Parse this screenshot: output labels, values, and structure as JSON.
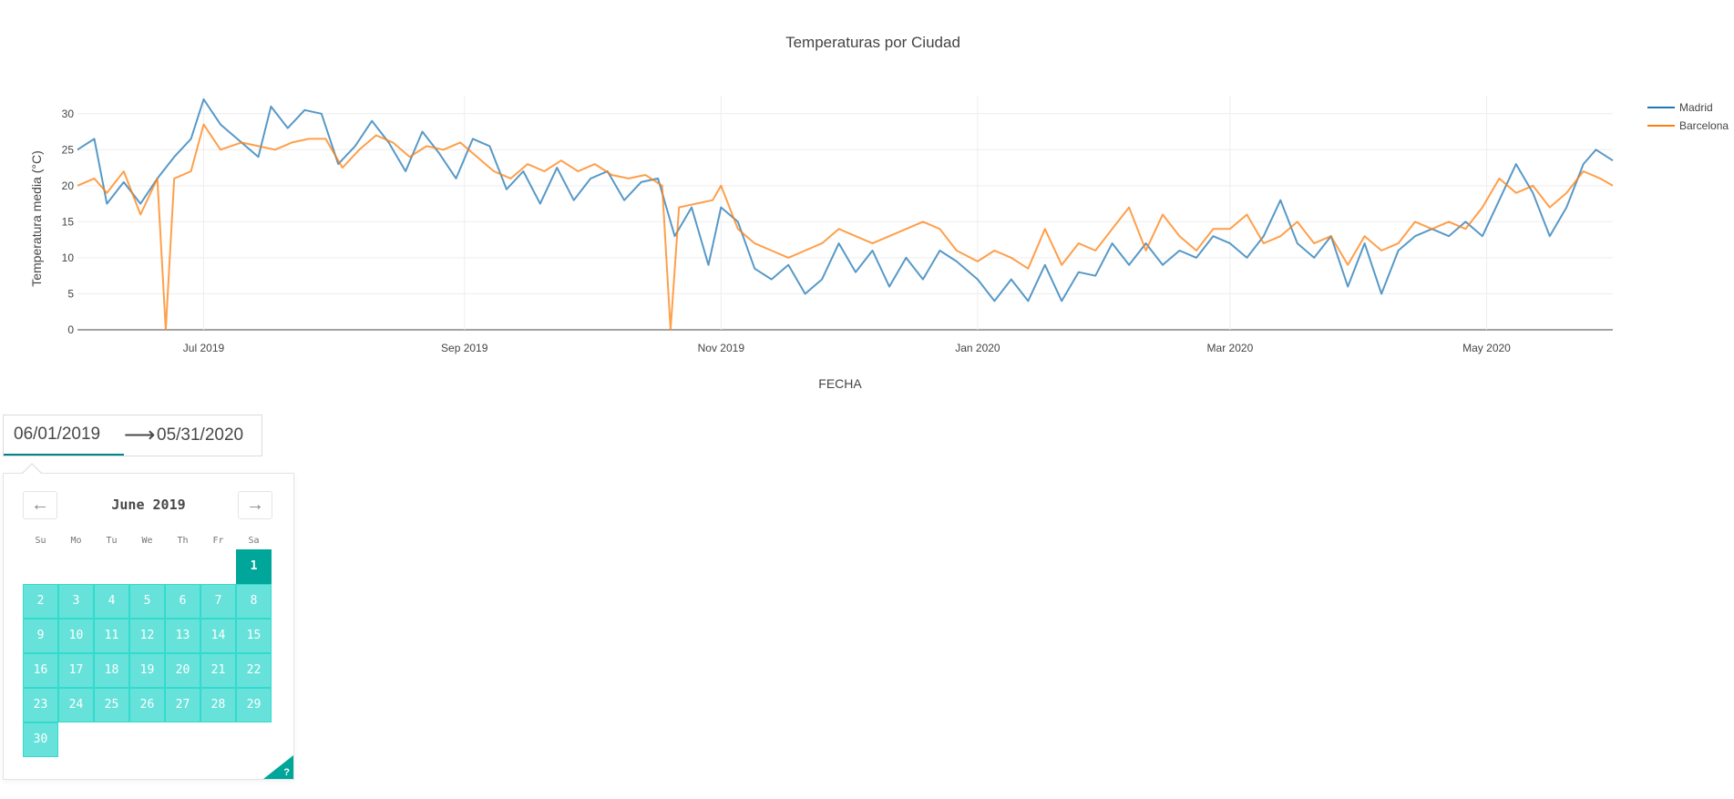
{
  "chart_data": {
    "type": "line",
    "title": "Temperaturas por Ciudad",
    "xlabel": "FECHA",
    "ylabel": "Temperatura media (°C)",
    "x_range": [
      "2019-06-01",
      "2020-05-31"
    ],
    "ylim": [
      0,
      32.5
    ],
    "y_ticks": [
      0,
      5,
      10,
      15,
      20,
      25,
      30
    ],
    "x_ticks": [
      {
        "date": "2019-07-01",
        "label": "Jul 2019"
      },
      {
        "date": "2019-09-01",
        "label": "Sep 2019"
      },
      {
        "date": "2019-11-01",
        "label": "Nov 2019"
      },
      {
        "date": "2020-01-01",
        "label": "Jan 2020"
      },
      {
        "date": "2020-03-01",
        "label": "Mar 2020"
      },
      {
        "date": "2020-05-01",
        "label": "May 2020"
      }
    ],
    "grid": true,
    "legend_position": "top-right",
    "series": [
      {
        "name": "Madrid",
        "color": "#1f77b4",
        "points": [
          [
            "2019-06-01",
            25
          ],
          [
            "2019-06-05",
            26.5
          ],
          [
            "2019-06-08",
            17.5
          ],
          [
            "2019-06-12",
            20.5
          ],
          [
            "2019-06-16",
            17.5
          ],
          [
            "2019-06-20",
            21
          ],
          [
            "2019-06-24",
            24
          ],
          [
            "2019-06-28",
            26.5
          ],
          [
            "2019-07-01",
            32
          ],
          [
            "2019-07-05",
            28.5
          ],
          [
            "2019-07-10",
            26
          ],
          [
            "2019-07-14",
            24
          ],
          [
            "2019-07-17",
            31
          ],
          [
            "2019-07-21",
            28
          ],
          [
            "2019-07-25",
            30.5
          ],
          [
            "2019-07-29",
            30
          ],
          [
            "2019-08-02",
            23
          ],
          [
            "2019-08-06",
            25.5
          ],
          [
            "2019-08-10",
            29
          ],
          [
            "2019-08-14",
            26
          ],
          [
            "2019-08-18",
            22
          ],
          [
            "2019-08-22",
            27.5
          ],
          [
            "2019-08-26",
            24.5
          ],
          [
            "2019-08-30",
            21
          ],
          [
            "2019-09-03",
            26.5
          ],
          [
            "2019-09-07",
            25.5
          ],
          [
            "2019-09-11",
            19.5
          ],
          [
            "2019-09-15",
            22
          ],
          [
            "2019-09-19",
            17.5
          ],
          [
            "2019-09-23",
            22.5
          ],
          [
            "2019-09-27",
            18
          ],
          [
            "2019-10-01",
            21
          ],
          [
            "2019-10-05",
            22
          ],
          [
            "2019-10-09",
            18
          ],
          [
            "2019-10-13",
            20.5
          ],
          [
            "2019-10-17",
            21
          ],
          [
            "2019-10-21",
            13
          ],
          [
            "2019-10-25",
            17
          ],
          [
            "2019-10-29",
            9
          ],
          [
            "2019-11-01",
            17
          ],
          [
            "2019-11-05",
            15
          ],
          [
            "2019-11-09",
            8.5
          ],
          [
            "2019-11-13",
            7
          ],
          [
            "2019-11-17",
            9
          ],
          [
            "2019-11-21",
            5
          ],
          [
            "2019-11-25",
            7
          ],
          [
            "2019-11-29",
            12
          ],
          [
            "2019-12-03",
            8
          ],
          [
            "2019-12-07",
            11
          ],
          [
            "2019-12-11",
            6
          ],
          [
            "2019-12-15",
            10
          ],
          [
            "2019-12-19",
            7
          ],
          [
            "2019-12-23",
            11
          ],
          [
            "2019-12-27",
            9.5
          ],
          [
            "2020-01-01",
            7
          ],
          [
            "2020-01-05",
            4
          ],
          [
            "2020-01-09",
            7
          ],
          [
            "2020-01-13",
            4
          ],
          [
            "2020-01-17",
            9
          ],
          [
            "2020-01-21",
            4
          ],
          [
            "2020-01-25",
            8
          ],
          [
            "2020-01-29",
            7.5
          ],
          [
            "2020-02-02",
            12
          ],
          [
            "2020-02-06",
            9
          ],
          [
            "2020-02-10",
            12
          ],
          [
            "2020-02-14",
            9
          ],
          [
            "2020-02-18",
            11
          ],
          [
            "2020-02-22",
            10
          ],
          [
            "2020-02-26",
            13
          ],
          [
            "2020-03-01",
            12
          ],
          [
            "2020-03-05",
            10
          ],
          [
            "2020-03-09",
            13
          ],
          [
            "2020-03-13",
            18
          ],
          [
            "2020-03-17",
            12
          ],
          [
            "2020-03-21",
            10
          ],
          [
            "2020-03-25",
            13
          ],
          [
            "2020-03-29",
            6
          ],
          [
            "2020-04-02",
            12
          ],
          [
            "2020-04-06",
            5
          ],
          [
            "2020-04-10",
            11
          ],
          [
            "2020-04-14",
            13
          ],
          [
            "2020-04-18",
            14
          ],
          [
            "2020-04-22",
            13
          ],
          [
            "2020-04-26",
            15
          ],
          [
            "2020-04-30",
            13
          ],
          [
            "2020-05-04",
            18
          ],
          [
            "2020-05-08",
            23
          ],
          [
            "2020-05-12",
            19
          ],
          [
            "2020-05-16",
            13
          ],
          [
            "2020-05-20",
            17
          ],
          [
            "2020-05-24",
            23
          ],
          [
            "2020-05-27",
            25
          ],
          [
            "2020-05-31",
            23.5
          ]
        ]
      },
      {
        "name": "Barcelona",
        "color": "#ff7f0e",
        "points": [
          [
            "2019-06-01",
            20
          ],
          [
            "2019-06-05",
            21
          ],
          [
            "2019-06-08",
            19
          ],
          [
            "2019-06-12",
            22
          ],
          [
            "2019-06-16",
            16
          ],
          [
            "2019-06-20",
            21
          ],
          [
            "2019-06-22",
            0
          ],
          [
            "2019-06-24",
            21
          ],
          [
            "2019-06-28",
            22
          ],
          [
            "2019-07-01",
            28.5
          ],
          [
            "2019-07-05",
            25
          ],
          [
            "2019-07-10",
            26
          ],
          [
            "2019-07-14",
            25.5
          ],
          [
            "2019-07-18",
            25
          ],
          [
            "2019-07-22",
            26
          ],
          [
            "2019-07-26",
            26.5
          ],
          [
            "2019-07-30",
            26.5
          ],
          [
            "2019-08-03",
            22.5
          ],
          [
            "2019-08-07",
            25
          ],
          [
            "2019-08-11",
            27
          ],
          [
            "2019-08-15",
            26
          ],
          [
            "2019-08-19",
            24
          ],
          [
            "2019-08-23",
            25.5
          ],
          [
            "2019-08-27",
            25
          ],
          [
            "2019-08-31",
            26
          ],
          [
            "2019-09-04",
            24
          ],
          [
            "2019-09-08",
            22
          ],
          [
            "2019-09-12",
            21
          ],
          [
            "2019-09-16",
            23
          ],
          [
            "2019-09-20",
            22
          ],
          [
            "2019-09-24",
            23.5
          ],
          [
            "2019-09-28",
            22
          ],
          [
            "2019-10-02",
            23
          ],
          [
            "2019-10-06",
            21.5
          ],
          [
            "2019-10-10",
            21
          ],
          [
            "2019-10-14",
            21.5
          ],
          [
            "2019-10-18",
            20
          ],
          [
            "2019-10-20",
            0
          ],
          [
            "2019-10-22",
            17
          ],
          [
            "2019-10-26",
            17.5
          ],
          [
            "2019-10-30",
            18
          ],
          [
            "2019-11-01",
            20
          ],
          [
            "2019-11-05",
            14
          ],
          [
            "2019-11-09",
            12
          ],
          [
            "2019-11-13",
            11
          ],
          [
            "2019-11-17",
            10
          ],
          [
            "2019-11-21",
            11
          ],
          [
            "2019-11-25",
            12
          ],
          [
            "2019-11-29",
            14
          ],
          [
            "2019-12-03",
            13
          ],
          [
            "2019-12-07",
            12
          ],
          [
            "2019-12-11",
            13
          ],
          [
            "2019-12-15",
            14
          ],
          [
            "2019-12-19",
            15
          ],
          [
            "2019-12-23",
            14
          ],
          [
            "2019-12-27",
            11
          ],
          [
            "2020-01-01",
            9.5
          ],
          [
            "2020-01-05",
            11
          ],
          [
            "2020-01-09",
            10
          ],
          [
            "2020-01-13",
            8.5
          ],
          [
            "2020-01-17",
            14
          ],
          [
            "2020-01-21",
            9
          ],
          [
            "2020-01-25",
            12
          ],
          [
            "2020-01-29",
            11
          ],
          [
            "2020-02-02",
            14
          ],
          [
            "2020-02-06",
            17
          ],
          [
            "2020-02-10",
            11
          ],
          [
            "2020-02-14",
            16
          ],
          [
            "2020-02-18",
            13
          ],
          [
            "2020-02-22",
            11
          ],
          [
            "2020-02-26",
            14
          ],
          [
            "2020-03-01",
            14
          ],
          [
            "2020-03-05",
            16
          ],
          [
            "2020-03-09",
            12
          ],
          [
            "2020-03-13",
            13
          ],
          [
            "2020-03-17",
            15
          ],
          [
            "2020-03-21",
            12
          ],
          [
            "2020-03-25",
            13
          ],
          [
            "2020-03-29",
            9
          ],
          [
            "2020-04-02",
            13
          ],
          [
            "2020-04-06",
            11
          ],
          [
            "2020-04-10",
            12
          ],
          [
            "2020-04-14",
            15
          ],
          [
            "2020-04-18",
            14
          ],
          [
            "2020-04-22",
            15
          ],
          [
            "2020-04-26",
            14
          ],
          [
            "2020-04-30",
            17
          ],
          [
            "2020-05-04",
            21
          ],
          [
            "2020-05-08",
            19
          ],
          [
            "2020-05-12",
            20
          ],
          [
            "2020-05-16",
            17
          ],
          [
            "2020-05-20",
            19
          ],
          [
            "2020-05-24",
            22
          ],
          [
            "2020-05-28",
            21
          ],
          [
            "2020-05-31",
            20
          ]
        ]
      }
    ]
  },
  "date_picker": {
    "start_date": "06/01/2019",
    "end_date": "05/31/2020",
    "arrow_glyph": "⟶",
    "month_caption": "June 2019",
    "prev_glyph": "←",
    "next_glyph": "→",
    "help_glyph": "?",
    "weekdays": [
      "Su",
      "Mo",
      "Tu",
      "We",
      "Th",
      "Fr",
      "Sa"
    ],
    "first_weekday_index": 6,
    "days_in_month": 30,
    "selected_start_day": 1,
    "accent_color": "#00a699",
    "range_color": "#66e2da"
  }
}
